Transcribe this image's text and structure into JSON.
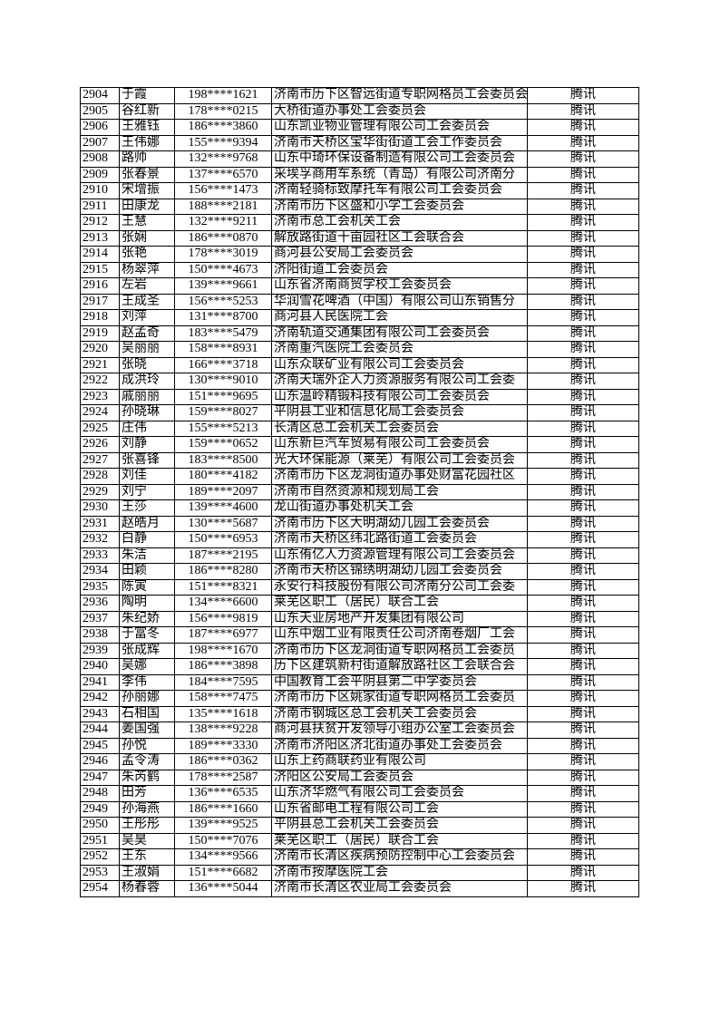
{
  "rows": [
    [
      "2904",
      "于霞",
      "198****1621",
      "济南市历下区智远街道专职网格员工会委员会",
      "腾讯"
    ],
    [
      "2905",
      "谷红新",
      "178****0215",
      "大桥街道办事处工会委员会",
      "腾讯"
    ],
    [
      "2906",
      "王雅钰",
      "186****3860",
      "山东凯业物业管理有限公司工会委员会",
      "腾讯"
    ],
    [
      "2907",
      "王伟娜",
      "155****9394",
      "济南市天桥区宝华街街道工会工作委员会",
      "腾讯"
    ],
    [
      "2908",
      "路帅",
      "132****9768",
      "山东中琦环保设备制造有限公司工会委员会",
      "腾讯"
    ],
    [
      "2909",
      "张春景",
      "137****6570",
      "采埃孚商用车系统（青岛）有限公司济南分",
      "腾讯"
    ],
    [
      "2910",
      "宋增振",
      "156****1473",
      "济南轻骑标致摩托车有限公司工会委员会",
      "腾讯"
    ],
    [
      "2911",
      "田康龙",
      "188****2181",
      "济南市历下区盛和小学工会委员会",
      "腾讯"
    ],
    [
      "2912",
      "王慧",
      "132****9211",
      "济南市总工会机关工会",
      "腾讯"
    ],
    [
      "2913",
      "张娴",
      "186****0870",
      "解放路街道十亩园社区工会联合会",
      "腾讯"
    ],
    [
      "2914",
      "张艳",
      "178****3019",
      "商河县公安局工会委员会",
      "腾讯"
    ],
    [
      "2915",
      "杨翠萍",
      "150****4673",
      "济阳街道工会委员会",
      "腾讯"
    ],
    [
      "2916",
      "左岩",
      "139****9661",
      "山东省济南商贸学校工会委员会",
      "腾讯"
    ],
    [
      "2917",
      "王成圣",
      "156****5253",
      "华润雪花啤酒（中国）有限公司山东销售分",
      "腾讯"
    ],
    [
      "2918",
      "刘萍",
      "131****8700",
      "商河县人民医院工会",
      "腾讯"
    ],
    [
      "2919",
      "赵孟奇",
      "183****5479",
      "济南轨道交通集团有限公司工会委员会",
      "腾讯"
    ],
    [
      "2920",
      "吴丽丽",
      "158****8931",
      "济南重汽医院工会委员会",
      "腾讯"
    ],
    [
      "2921",
      "张晓",
      "166****3718",
      "山东众联矿业有限公司工会委员会",
      "腾讯"
    ],
    [
      "2922",
      "成洪玲",
      "130****9010",
      "济南天瑞外企人力资源服务有限公司工会委",
      "腾讯"
    ],
    [
      "2923",
      "戚丽丽",
      "151****9695",
      "山东温岭精锻科技有限公司工会委员会",
      "腾讯"
    ],
    [
      "2924",
      "孙晓琳",
      "159****8027",
      "平阴县工业和信息化局工会委员会",
      "腾讯"
    ],
    [
      "2925",
      "庄伟",
      "155****5213",
      "长清区总工会机关工会委员会",
      "腾讯"
    ],
    [
      "2926",
      "刘静",
      "159****0652",
      "山东新巨汽车贸易有限公司工会委员会",
      "腾讯"
    ],
    [
      "2927",
      "张喜锋",
      "183****8500",
      "光大环保能源（莱芜）有限公司工会委员会",
      "腾讯"
    ],
    [
      "2928",
      "刘佳",
      "180****4182",
      "济南市历下区龙洞街道办事处财富花园社区",
      "腾讯"
    ],
    [
      "2929",
      "刘宁",
      "189****2097",
      "济南市自然资源和规划局工会",
      "腾讯"
    ],
    [
      "2930",
      "王莎",
      "139****4600",
      "龙山街道办事处机关工会",
      "腾讯"
    ],
    [
      "2931",
      "赵皓月",
      "130****5687",
      "济南市历下区大明湖幼儿园工会委员会",
      "腾讯"
    ],
    [
      "2932",
      "白静",
      "150****6953",
      "济南市天桥区纬北路街道工会委员会",
      "腾讯"
    ],
    [
      "2933",
      "朱洁",
      "187****2195",
      "山东侑亿人力资源管理有限公司工会委员会",
      "腾讯"
    ],
    [
      "2934",
      "田颖",
      "186****8280",
      "济南市天桥区锦绣明湖幼儿园工会委员会",
      "腾讯"
    ],
    [
      "2935",
      "陈寅",
      "151****8321",
      "永安行科技股份有限公司济南分公司工会委",
      "腾讯"
    ],
    [
      "2936",
      "陶明",
      "134****6600",
      "莱芜区职工（居民）联合工会",
      "腾讯"
    ],
    [
      "2937",
      "朱纪娇",
      "156****9819",
      "山东天业房地产开发集团有限公司",
      "腾讯"
    ],
    [
      "2938",
      "于富冬",
      "187****6977",
      "山东中烟工业有限责任公司济南卷烟厂工会",
      "腾讯"
    ],
    [
      "2939",
      "张成辉",
      "198****1670",
      "济南市历下区龙洞街道专职网格员工会委员",
      "腾讯"
    ],
    [
      "2940",
      "吴娜",
      "186****3898",
      "历下区建筑新村街道解放路社区工会联合会",
      "腾讯"
    ],
    [
      "2941",
      "李伟",
      "184****7595",
      "中国教育工会平阴县第二中学委员会",
      "腾讯"
    ],
    [
      "2942",
      "孙丽娜",
      "158****7475",
      "济南市历下区姚家街道专职网格员工会委员",
      "腾讯"
    ],
    [
      "2943",
      "石相国",
      "135****1618",
      "济南市钢城区总工会机关工会委员会",
      "腾讯"
    ],
    [
      "2944",
      "姜国强",
      "138****9228",
      "商河县扶贫开发领导小组办公室工会委员会",
      "腾讯"
    ],
    [
      "2945",
      "孙悦",
      "189****3330",
      "济南市济阳区济北街道办事处工会委员会",
      "腾讯"
    ],
    [
      "2946",
      "孟令涛",
      "186****0362",
      "山东上药商联药业有限公司",
      "腾讯"
    ],
    [
      "2947",
      "朱芮鹤",
      "178****2587",
      "济阳区公安局工会委员会",
      "腾讯"
    ],
    [
      "2948",
      "田芳",
      "136****6535",
      "山东济华燃气有限公司工会委员会",
      "腾讯"
    ],
    [
      "2949",
      "孙海燕",
      "186****1660",
      "山东省邮电工程有限公司工会",
      "腾讯"
    ],
    [
      "2950",
      "王彤彤",
      "139****9525",
      "平阴县总工会机关工会委员会",
      "腾讯"
    ],
    [
      "2951",
      "吴昊",
      "150****7076",
      "莱芜区职工（居民）联合工会",
      "腾讯"
    ],
    [
      "2952",
      "王东",
      "134****9566",
      "济南市长清区疾病预防控制中心工会委员会",
      "腾讯"
    ],
    [
      "2953",
      "王淑娟",
      "151****6682",
      "济南市按摩医院工会",
      "腾讯"
    ],
    [
      "2954",
      "杨春蓉",
      "136****5044",
      "济南市长清区农业局工会委员会",
      "腾讯"
    ]
  ]
}
